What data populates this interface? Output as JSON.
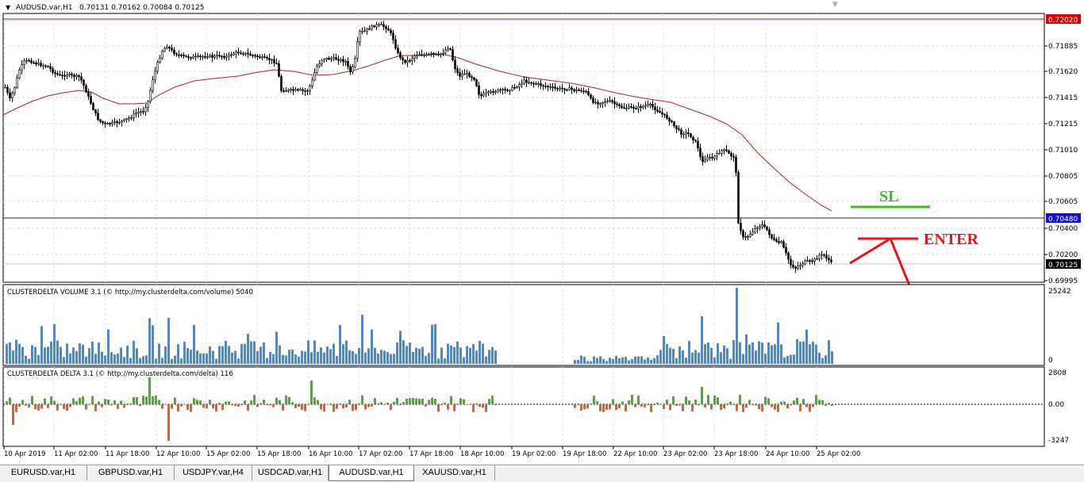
{
  "window": {
    "symbol_title": "AUDUSD.var,H1",
    "ohlc": "0.70131 0.70162 0.70084 0.70125"
  },
  "price_axis": {
    "ticks": [
      "0.71885",
      "0.71620",
      "0.71415",
      "0.71215",
      "0.71010",
      "0.70805",
      "0.70605",
      "0.70400",
      "0.70200",
      "0.69995"
    ],
    "red_line_label": "0.72020",
    "blue_line_label": "0.70480",
    "current_price_label": "0.70125"
  },
  "volume_panel": {
    "title": "CLUSTERDELTA VOLUME 3.1 (© http://my.clusterdelta.com/volume) 5040",
    "axis_max": "25242",
    "axis_min": "0"
  },
  "delta_panel": {
    "title": "CLUSTERDELTA DELTA 3.1 (© http://my.clusterdelta.com/delta) 116",
    "axis_max": "2808",
    "axis_zero": "0.00",
    "axis_min": "-3247"
  },
  "time_axis": [
    "10 Apr 2019",
    "11 Apr 02:00",
    "11 Apr 18:00",
    "12 Apr 10:00",
    "15 Apr 02:00",
    "15 Apr 18:00",
    "16 Apr 10:00",
    "17 Apr 02:00",
    "17 Apr 18:00",
    "18 Apr 10:00",
    "19 Apr 02:00",
    "19 Apr 18:00",
    "22 Apr 10:00",
    "23 Apr 02:00",
    "23 Apr 18:00",
    "24 Apr 10:00",
    "25 Apr 02:00"
  ],
  "annotations": {
    "sl": "SL",
    "enter": "ENTER"
  },
  "tabs": [
    "EURUSD.var,H1",
    "GBPUSD.var,H1",
    "USDJPY.var,H4",
    "USDCAD.var,H1",
    "AUDUSD.var,H1",
    "XAUUSD.var,H1"
  ],
  "active_tab": "AUDUSD.var,H1",
  "colors": {
    "candle": "#000000",
    "moving_average": "#b22222",
    "volume_bar": "#3b8fe0",
    "delta_positive": "#4caf28",
    "delta_negative": "#e0602a",
    "sl_line": "#3cba2a",
    "enter_annotation": "#e8141a",
    "red_level": "#d40000",
    "blue_label_bg": "#1010d0",
    "red_label_bg": "#d40000"
  }
}
